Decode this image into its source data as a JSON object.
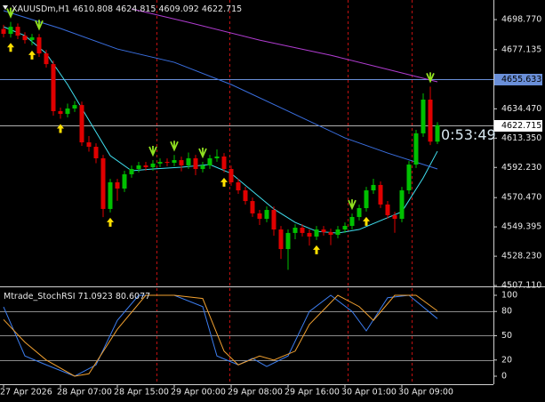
{
  "header": {
    "symbol": "XAUUSDm,H1",
    "timer": "0:53:49"
  },
  "chart_data": [
    {
      "type": "candlestick",
      "categories": [
        "27 Apr 2026",
        null,
        null,
        null,
        null,
        null,
        null,
        null,
        "28 Apr 07:00",
        null,
        null,
        null,
        null,
        null,
        null,
        null,
        "28 Apr 15:00",
        null,
        null,
        null,
        null,
        null,
        null,
        null,
        "29 Apr 00:00",
        null,
        null,
        null,
        null,
        null,
        null,
        null,
        "29 Apr 08:00",
        null,
        null,
        null,
        null,
        null,
        null,
        null,
        "29 Apr 16:00",
        null,
        null,
        null,
        null,
        null,
        null,
        null,
        "30 Apr 01:00",
        null,
        null,
        null,
        null,
        null,
        null,
        null,
        "30 Apr 09:00",
        null,
        null,
        null,
        null,
        null
      ],
      "open": [
        4692.0,
        4688.5,
        4693.6,
        4687.2,
        4684.0,
        4686.0,
        4674.4,
        4666.7,
        4632.8,
        4630.8,
        4634.7,
        4637.2,
        4610.3,
        4607.1,
        4598.8,
        4562.3,
        4581.5,
        4577.0,
        4587.3,
        4591.1,
        4593.7,
        4592.4,
        4595.0,
        4596.2,
        4595.6,
        4597.5,
        4593.7,
        4598.8,
        4591.1,
        4593.7,
        4598.8,
        4600.1,
        4591.1,
        4581.5,
        4575.7,
        4568.0,
        4559.1,
        4555.2,
        4561.6,
        4547.5,
        4533.4,
        4545.0,
        4548.8,
        4545.0,
        4542.4,
        4547.5,
        4545.6,
        4543.7,
        4547.5,
        4550.1,
        4556.5,
        4562.9,
        4575.7,
        4579.6,
        4565.5,
        4557.8,
        4555.2,
        4575.7,
        4594.3,
        4616.8,
        4641.1,
        4610.808
      ],
      "high": [
        4695.0,
        4697.1,
        4696.0,
        4689.7,
        4688.5,
        4688.4,
        4676.9,
        4669.2,
        4635.3,
        4638.2,
        4640.1,
        4639.7,
        4614.8,
        4609.6,
        4601.3,
        4584.0,
        4584.0,
        4589.8,
        4593.6,
        4596.2,
        4596.2,
        4597.5,
        4598.7,
        4598.7,
        4601.2,
        4600.0,
        4603.0,
        4601.3,
        4596.2,
        4601.3,
        4605.2,
        4602.6,
        4593.6,
        4584.0,
        4578.2,
        4570.5,
        4561.6,
        4564.1,
        4564.1,
        4550.0,
        4547.5,
        4551.3,
        4551.3,
        4547.5,
        4550.0,
        4550.0,
        4548.1,
        4550.0,
        4552.6,
        4559.0,
        4565.4,
        4578.2,
        4584.1,
        4582.1,
        4568.0,
        4560.3,
        4578.2,
        4596.8,
        4619.3,
        4645.6,
        4650.5,
        4624.815
      ],
      "low": [
        4686.0,
        4685.8,
        4684.7,
        4681.5,
        4680.3,
        4671.9,
        4664.2,
        4629.6,
        4627.3,
        4628.3,
        4632.2,
        4607.8,
        4603.6,
        4595.3,
        4556.4,
        4559.8,
        4568.2,
        4574.5,
        4584.8,
        4588.6,
        4589.9,
        4589.9,
        4592.5,
        4593.1,
        4593.1,
        4589.4,
        4591.2,
        4586.6,
        4588.6,
        4591.2,
        4596.3,
        4588.6,
        4579.0,
        4573.2,
        4565.5,
        4556.6,
        4550.7,
        4552.7,
        4543.0,
        4526.3,
        4518.4,
        4540.5,
        4542.5,
        4535.9,
        4539.9,
        4543.1,
        4536.2,
        4541.2,
        4545.0,
        4547.6,
        4554.0,
        4560.4,
        4573.2,
        4563.0,
        4555.3,
        4545.1,
        4552.7,
        4573.2,
        4591.8,
        4614.3,
        4608.3,
        4609.092
      ],
      "close": [
        4688.5,
        4693.6,
        4687.2,
        4684.0,
        4686.0,
        4674.4,
        4666.7,
        4632.8,
        4630.8,
        4634.7,
        4637.2,
        4610.3,
        4607.1,
        4598.8,
        4562.3,
        4581.5,
        4577.0,
        4587.3,
        4591.1,
        4593.7,
        4592.4,
        4595.0,
        4596.2,
        4595.6,
        4597.5,
        4593.7,
        4598.8,
        4591.1,
        4593.7,
        4598.8,
        4600.1,
        4591.1,
        4581.5,
        4575.7,
        4568.0,
        4559.1,
        4555.2,
        4561.6,
        4547.5,
        4533.4,
        4545.0,
        4548.8,
        4545.0,
        4542.4,
        4547.5,
        4545.6,
        4543.7,
        4547.5,
        4550.1,
        4556.5,
        4562.9,
        4575.7,
        4579.6,
        4565.5,
        4557.8,
        4555.2,
        4575.7,
        4594.3,
        4616.8,
        4641.1,
        4610.808,
        4622.715
      ],
      "up_color": "#00c000",
      "down_color": "#e00000",
      "series": [
        {
          "color": "#40e0f0",
          "x": [
            0,
            3,
            6,
            9,
            12,
            15,
            18,
            21,
            25,
            29,
            32,
            35,
            38,
            41,
            44,
            47,
            50,
            53,
            56,
            59,
            61
          ],
          "values": [
            4693.6,
            4687.2,
            4674.4,
            4652.0,
            4626.3,
            4600.7,
            4589.8,
            4591.1,
            4592.4,
            4594.3,
            4587.9,
            4575.1,
            4562.3,
            4552.6,
            4546.2,
            4544.9,
            4547.5,
            4553.9,
            4560.3,
            4584.7,
            4603.9
          ]
        },
        {
          "color": "#3a6fe0",
          "x": [
            0,
            8,
            16,
            24,
            32,
            40,
            48,
            54,
            61
          ],
          "values": [
            4705.2,
            4692.4,
            4677.6,
            4668.0,
            4652.0,
            4632.8,
            4613.5,
            4602.6,
            4591.1
          ]
        },
        {
          "color": "#b03cd0",
          "x": [
            18,
            26,
            36,
            46,
            54,
            61
          ],
          "values": [
            4706.5,
            4696.8,
            4684.0,
            4673.1,
            4662.9,
            4653.9
          ]
        }
      ],
      "buy_signals": [
        1,
        4,
        8,
        15,
        31,
        44,
        51
      ],
      "buy_color": "#ffe000",
      "sell_signals": [
        1,
        5,
        21,
        24,
        28,
        49,
        60
      ],
      "sell_color": "#90e020",
      "levels": [
        {
          "value": 4655.633,
          "color": "#6a8fd8"
        }
      ],
      "current_price_color": "#b0b0b0",
      "ylim": [
        4506.5,
        4712.9
      ],
      "yticks": [
        {
          "value": 4698.77,
          "label": "4698.770"
        },
        {
          "value": 4677.135,
          "label": "4677.135"
        },
        {
          "value": 4634.47,
          "label": "4634.470"
        },
        {
          "value": 4613.35,
          "label": "4613.350"
        },
        {
          "value": 4592.23,
          "label": "4592.230"
        },
        {
          "value": 4570.47,
          "label": "4570.470"
        },
        {
          "value": 4549.395,
          "label": "4549.395"
        },
        {
          "value": 4528.23,
          "label": "4528.230"
        },
        {
          "value": 4507.11,
          "label": "4507.110"
        }
      ]
    },
    {
      "type": "line",
      "title": "Mtrade_StochRSI",
      "series": [
        {
          "color": "#3d7ef0",
          "x": [
            0,
            3,
            6,
            10,
            13,
            16,
            19,
            24,
            28,
            30,
            33,
            35,
            37,
            40,
            43,
            46,
            49,
            51,
            54,
            57,
            61
          ],
          "values": [
            85.7,
            25,
            14,
            0,
            14,
            69,
            100,
            100,
            86,
            25,
            14,
            22,
            12,
            25,
            80,
            100,
            80,
            56,
            97,
            100,
            71.0923
          ]
        },
        {
          "color": "#f0a030",
          "x": [
            0,
            3,
            6,
            10,
            12,
            16,
            20,
            24,
            28,
            31,
            33,
            36,
            38,
            41,
            43,
            47,
            50,
            52,
            55,
            58,
            61
          ],
          "values": [
            70,
            42,
            20,
            0,
            3,
            58,
            100,
            100,
            96,
            31,
            14,
            25,
            20,
            31,
            64,
            100,
            86,
            69,
            100,
            100,
            80.6077
          ]
        }
      ],
      "level_lines": [
        80,
        50,
        20
      ],
      "ylim": [
        -9.9,
        107.7
      ],
      "yticks": [
        100,
        80,
        50,
        20,
        0
      ]
    }
  ]
}
